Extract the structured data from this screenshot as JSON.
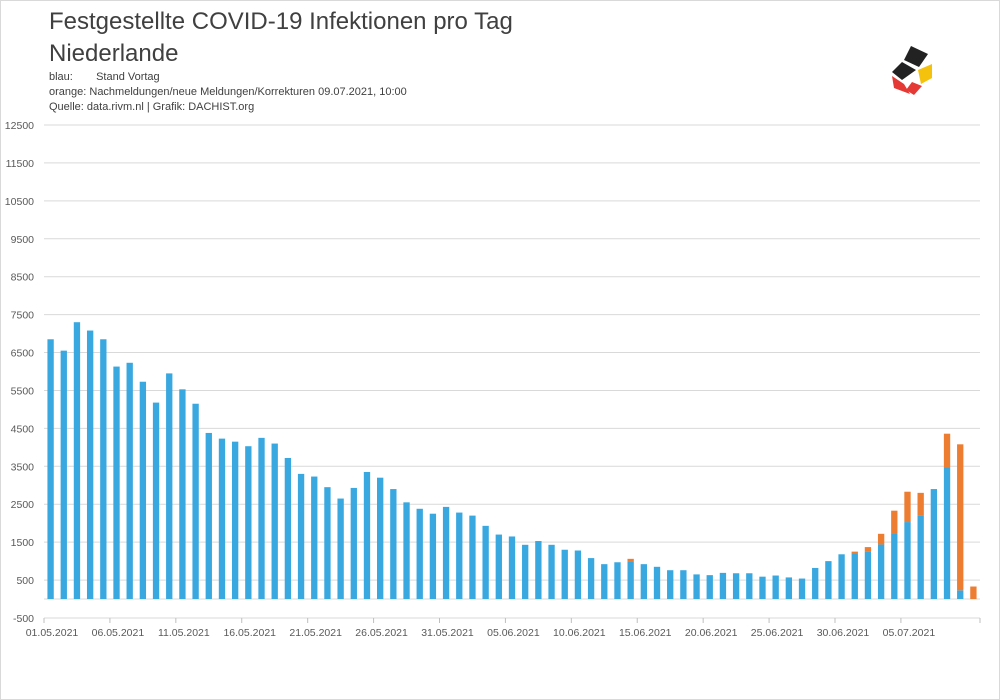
{
  "title_line1": "Festgestellte COVID-19 Infektionen pro Tag",
  "title_line2": "Niederlande",
  "legend": [
    {
      "key": "blau:",
      "text": "Stand Vortag"
    },
    {
      "key": "orange:",
      "text": "Nachmeldungen/neue Meldungen/Korrekturen  09.07.2021, 10:00"
    },
    {
      "key": "Quelle:",
      "text": "data.rivm.nl | Grafik:  DACHIST.org"
    }
  ],
  "colors": {
    "blue": "#3aa8e0",
    "orange": "#ed7d31",
    "grid": "#d9d9d9"
  },
  "logo_icon": "dachist-logo-icon",
  "chart_data": {
    "type": "bar",
    "stacked": true,
    "ylim": [
      -500,
      12500
    ],
    "yticks": [
      -500,
      500,
      1500,
      2500,
      3500,
      4500,
      5500,
      6500,
      7500,
      8500,
      9500,
      10500,
      11500,
      12500
    ],
    "xtick_labels": [
      "01.05.2021",
      "06.05.2021",
      "11.05.2021",
      "16.05.2021",
      "21.05.2021",
      "26.05.2021",
      "31.05.2021",
      "05.06.2021",
      "10.06.2021",
      "15.06.2021",
      "20.06.2021",
      "25.06.2021",
      "30.06.2021",
      "05.07.2021"
    ],
    "xtick_every": 5,
    "grid": true,
    "series": [
      {
        "name": "blau",
        "values": [
          6850,
          6550,
          7300,
          7080,
          6850,
          6130,
          6230,
          5730,
          5180,
          5950,
          5530,
          5150,
          4380,
          4230,
          4150,
          4030,
          4250,
          4100,
          3720,
          3300,
          3230,
          2950,
          2650,
          2930,
          3350,
          3200,
          2900,
          2550,
          2380,
          2250,
          2430,
          2280,
          2200,
          1930,
          1700,
          1650,
          1430,
          1530,
          1430,
          1300,
          1280,
          1080,
          920,
          970,
          1000,
          920,
          850,
          760,
          760,
          650,
          630,
          690,
          680,
          680,
          590,
          620,
          570,
          540,
          820,
          1000,
          1180,
          1200,
          1250,
          1440,
          1730,
          2030,
          2200,
          2900,
          3480,
          230,
          0
        ]
      },
      {
        "name": "orange",
        "values": [
          0,
          0,
          0,
          0,
          0,
          0,
          0,
          0,
          0,
          0,
          0,
          0,
          0,
          0,
          0,
          0,
          0,
          0,
          0,
          0,
          0,
          0,
          0,
          0,
          0,
          0,
          0,
          0,
          0,
          0,
          0,
          0,
          0,
          0,
          0,
          0,
          0,
          0,
          0,
          0,
          0,
          0,
          0,
          0,
          60,
          0,
          0,
          0,
          0,
          0,
          0,
          0,
          0,
          0,
          0,
          0,
          0,
          0,
          0,
          0,
          0,
          50,
          120,
          280,
          600,
          800,
          600,
          0,
          880,
          3850,
          330
        ]
      }
    ]
  }
}
